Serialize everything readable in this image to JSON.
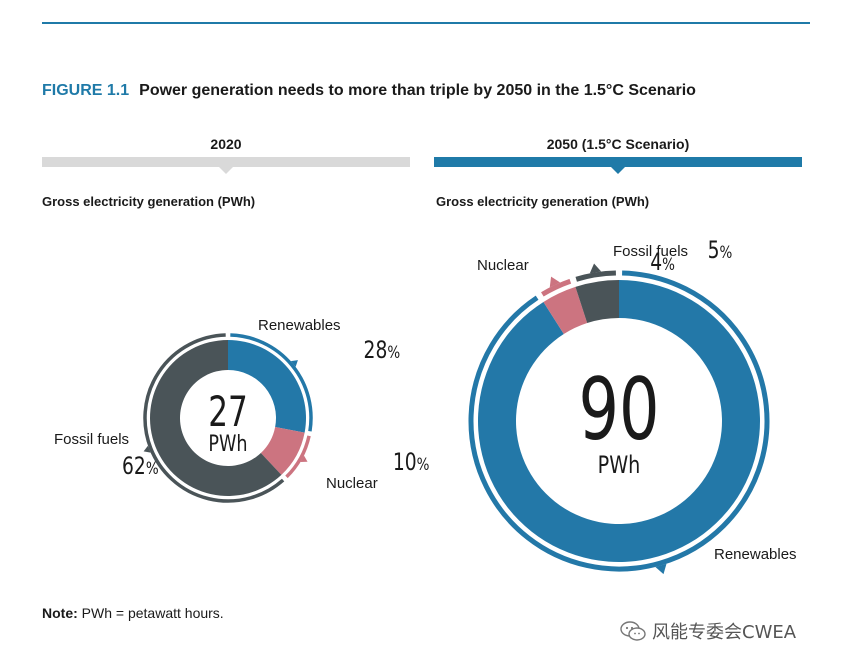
{
  "figure": {
    "number": "FIGURE 1.1",
    "title": "Power generation needs to more than triple by 2050 in the 1.5°C Scenario"
  },
  "note": {
    "label": "Note:",
    "text": " PWh = petawatt hours."
  },
  "watermark": {
    "text": "风能专委会CWEA",
    "icon": "wechat-icon"
  },
  "colors": {
    "accent": "#1f7aa8",
    "renewables": "#2378a8",
    "nuclear": "#cc7480",
    "fossil": "#4a5458",
    "gray_bar": "#d9d9d9"
  },
  "chart_data": [
    {
      "type": "pie",
      "donut": true,
      "panel_title": "2020",
      "subtitle": "Gross electricity generation (PWh)",
      "total_value": "27",
      "total_unit": "PWh",
      "slices": [
        {
          "name": "Renewables",
          "value": 28,
          "label": "28"
        },
        {
          "name": "Nuclear",
          "value": 10,
          "label": "10"
        },
        {
          "name": "Fossil fuels",
          "value": 62,
          "label": "62"
        }
      ]
    },
    {
      "type": "pie",
      "donut": true,
      "panel_title": "2050 (1.5°C Scenario)",
      "subtitle": "Gross electricity generation (PWh)",
      "total_value": "90",
      "total_unit": "PWh",
      "slices": [
        {
          "name": "Renewables",
          "value": 91,
          "label": "91"
        },
        {
          "name": "Nuclear",
          "value": 4,
          "label": "4"
        },
        {
          "name": "Fossil fuels",
          "value": 5,
          "label": "5"
        }
      ]
    }
  ]
}
